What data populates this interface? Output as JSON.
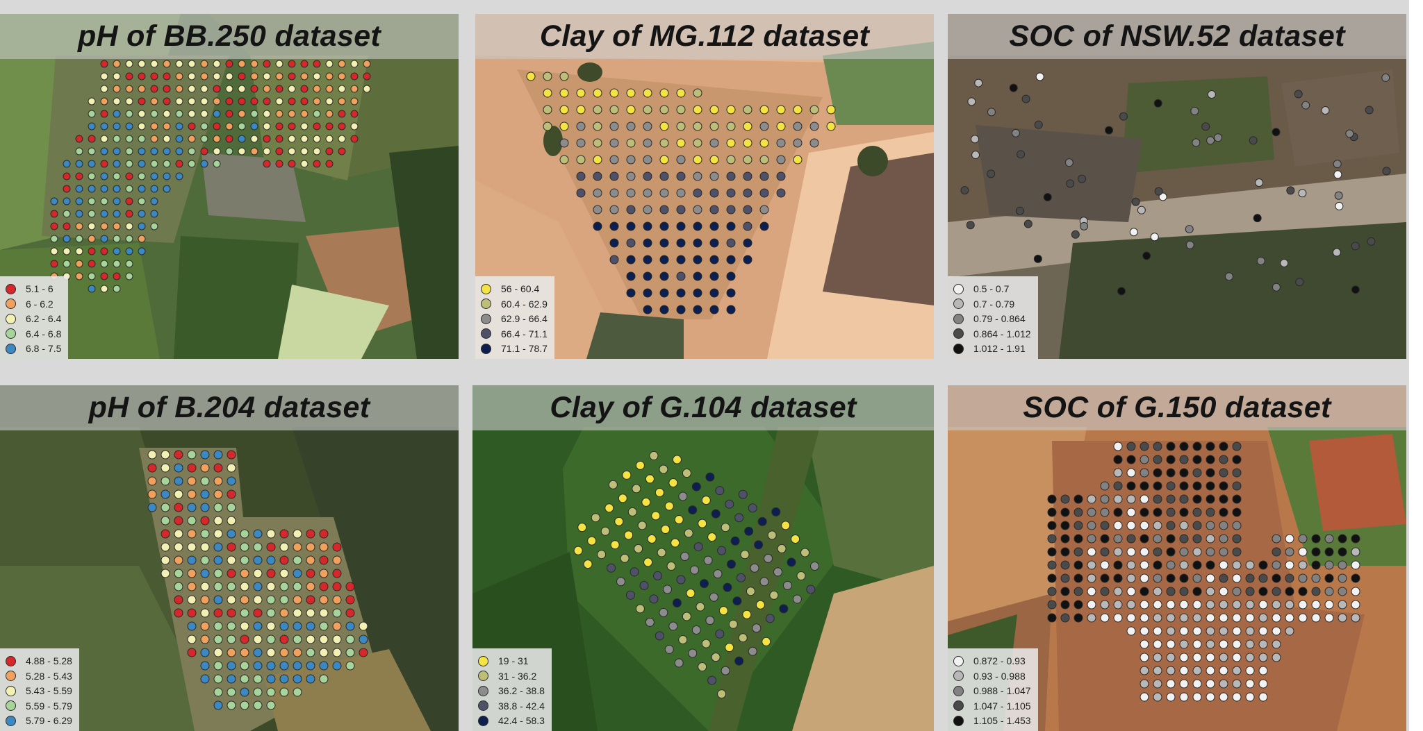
{
  "colors": {
    "ph": [
      "#d6272b",
      "#f0a15e",
      "#f3f0b4",
      "#a6d49b",
      "#3c88c2"
    ],
    "clay": [
      "#f4e343",
      "#bdbf78",
      "#8c8c8c",
      "#4f5169",
      "#0d1f4f"
    ],
    "soc": [
      "#f2f2f2",
      "#b8b8b8",
      "#828282",
      "#4a4a4a",
      "#111111"
    ]
  },
  "panels": [
    {
      "title": "pH of BB.250 dataset",
      "legend": [
        {
          "label": "5.1 - 6",
          "color": "#d6272b"
        },
        {
          "label": "6 - 6.2",
          "color": "#f0a15e"
        },
        {
          "label": "6.2 - 6.4",
          "color": "#f3f0b4"
        },
        {
          "label": "6.4 - 6.8",
          "color": "#a6d49b"
        },
        {
          "label": "6.8 - 7.5",
          "color": "#3c88c2"
        }
      ]
    },
    {
      "title": "Clay of MG.112 dataset",
      "legend": [
        {
          "label": "56 - 60.4",
          "color": "#f4e343"
        },
        {
          "label": "60.4 - 62.9",
          "color": "#bdbf78"
        },
        {
          "label": "62.9 - 66.4",
          "color": "#8c8c8c"
        },
        {
          "label": "66.4 - 71.1",
          "color": "#4f5169"
        },
        {
          "label": "71.1 - 78.7",
          "color": "#0d1f4f"
        }
      ]
    },
    {
      "title": "SOC of NSW.52 dataset",
      "legend": [
        {
          "label": "0.5 - 0.7",
          "color": "#f2f2f2"
        },
        {
          "label": "0.7 - 0.79",
          "color": "#b8b8b8"
        },
        {
          "label": "0.79 - 0.864",
          "color": "#828282"
        },
        {
          "label": "0.864 - 1.012",
          "color": "#4a4a4a"
        },
        {
          "label": "1.012 - 1.91",
          "color": "#111111"
        }
      ]
    },
    {
      "title": "pH of B.204 dataset",
      "legend": [
        {
          "label": "4.88 - 5.28",
          "color": "#d6272b"
        },
        {
          "label": "5.28 - 5.43",
          "color": "#f0a15e"
        },
        {
          "label": "5.43 - 5.59",
          "color": "#f3f0b4"
        },
        {
          "label": "5.59 - 5.79",
          "color": "#a6d49b"
        },
        {
          "label": "5.79 - 6.29",
          "color": "#3c88c2"
        }
      ]
    },
    {
      "title": "Clay of G.104 dataset",
      "legend": [
        {
          "label": "19 - 31",
          "color": "#f4e343"
        },
        {
          "label": "31 - 36.2",
          "color": "#bdbf78"
        },
        {
          "label": "36.2 - 38.8",
          "color": "#8c8c8c"
        },
        {
          "label": "38.8 - 42.4",
          "color": "#4f5169"
        },
        {
          "label": "42.4 - 58.3",
          "color": "#0d1f4f"
        }
      ]
    },
    {
      "title": "SOC of G.150 dataset",
      "legend": [
        {
          "label": "0.872 - 0.93",
          "color": "#f2f2f2"
        },
        {
          "label": "0.93 - 0.988",
          "color": "#b8b8b8"
        },
        {
          "label": "0.988 - 1.047",
          "color": "#828282"
        },
        {
          "label": "1.047 - 1.105",
          "color": "#4a4a4a"
        },
        {
          "label": "1.105 - 1.453",
          "color": "#111111"
        }
      ]
    }
  ]
}
